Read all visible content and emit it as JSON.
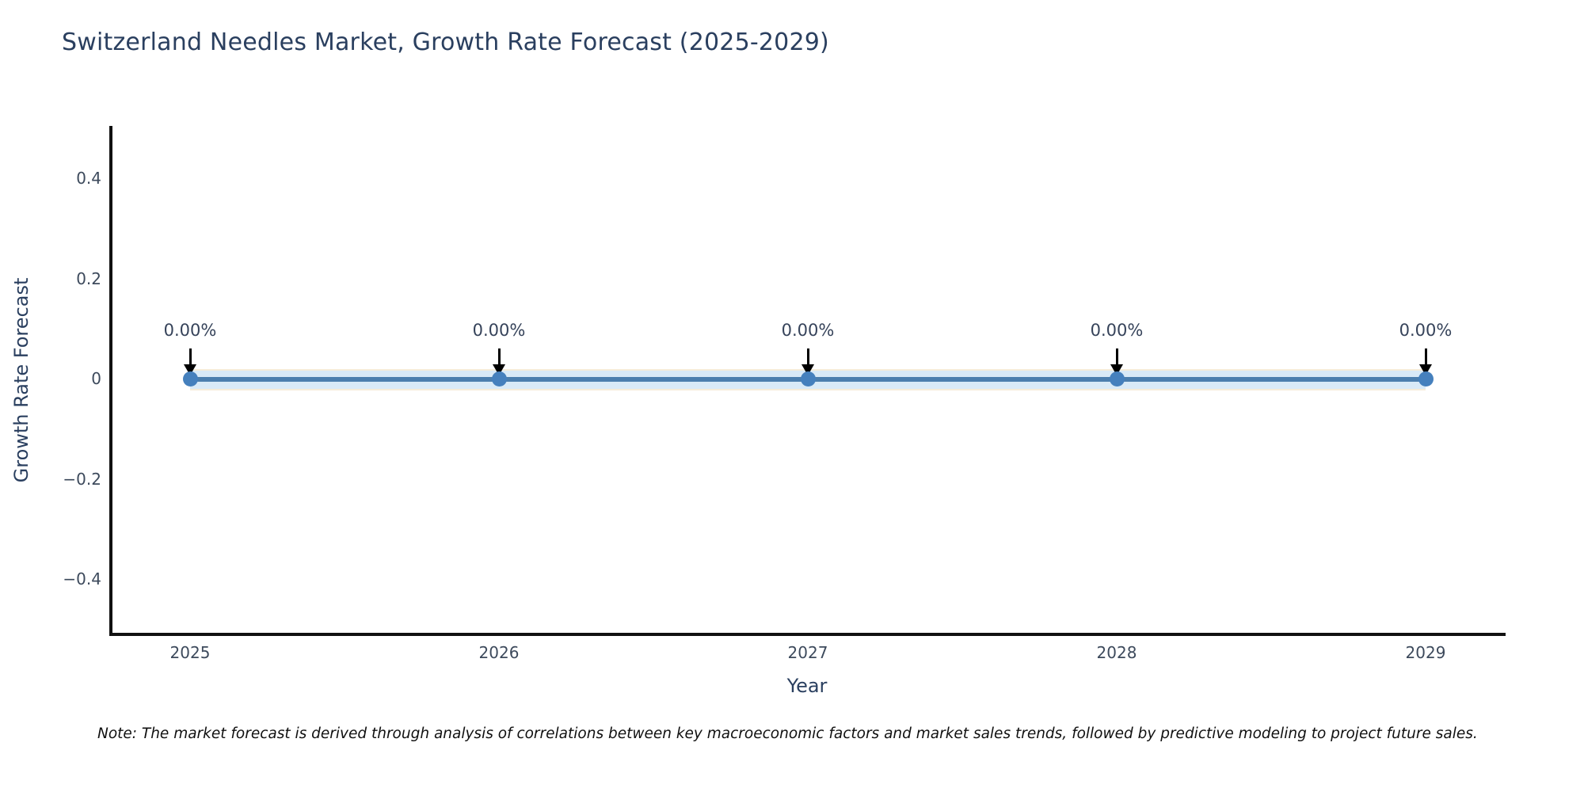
{
  "title": "Switzerland Needles Market, Growth Rate Forecast (2025-2029)",
  "note": "Note: The market forecast is derived through analysis of correlations between key macroeconomic factors and market sales trends, followed by predictive modeling to project future sales.",
  "colors": {
    "title_text": "#2a3f5f",
    "tick_text": "#3d4a5c",
    "annotation_text": "#36435a",
    "axis": "#111111",
    "line": "#4c7fae",
    "marker": "#4580bd",
    "band": "#d9eaf7",
    "band_edge": "#f6ecd9"
  },
  "chart_data": {
    "type": "line",
    "title": "Switzerland Needles Market, Growth Rate Forecast (2025-2029)",
    "xlabel": "Year",
    "ylabel": "Growth Rate Forecast",
    "x": [
      2025,
      2026,
      2027,
      2028,
      2029
    ],
    "y": [
      0,
      0,
      0,
      0,
      0
    ],
    "point_labels": [
      "0.00%",
      "0.00%",
      "0.00%",
      "0.00%",
      "0.00%"
    ],
    "xtick_labels": [
      "2025",
      "2026",
      "2027",
      "2028",
      "2029"
    ],
    "yticks": [
      0.4,
      0.2,
      0,
      -0.2,
      -0.4
    ],
    "ytick_labels": [
      "0.4",
      "0.2",
      "0",
      "−0.2",
      "−0.4"
    ],
    "ylim": [
      -0.51,
      0.5
    ],
    "grid": false,
    "legend": false,
    "marker_style": "circle",
    "annotation_arrows": "black-down-arrow"
  }
}
